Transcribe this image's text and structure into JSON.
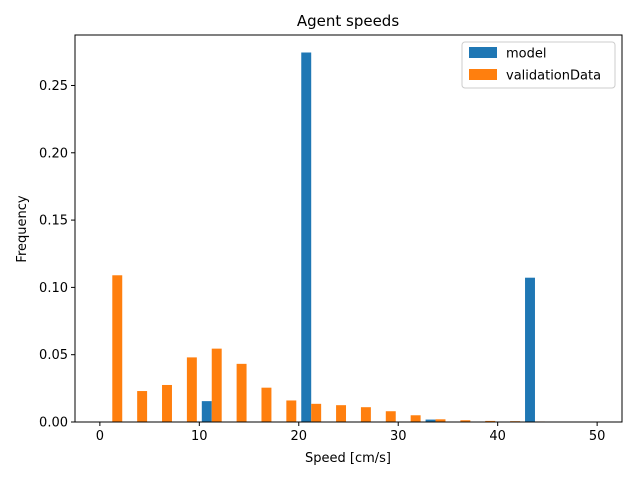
{
  "chart_data": {
    "type": "bar",
    "title": "Agent speeds",
    "xlabel": "Speed [cm/s]",
    "ylabel": "Frequency",
    "xlim": [
      -2.5,
      52.5
    ],
    "ylim": [
      0,
      0.2875
    ],
    "xticks": [
      0,
      10,
      20,
      30,
      40,
      50
    ],
    "xtick_labels": [
      "0",
      "10",
      "20",
      "30",
      "40",
      "50"
    ],
    "yticks": [
      0,
      0.05,
      0.1,
      0.15,
      0.2,
      0.25
    ],
    "ytick_labels": [
      "0.00",
      "0.05",
      "0.10",
      "0.15",
      "0.20",
      "0.25"
    ],
    "grid": false,
    "legend_position": "top-right",
    "bin_width": 2.5,
    "series": [
      {
        "name": "model",
        "color": "#1f77b4",
        "offset": "left",
        "bin_starts": [
          0,
          2.5,
          5,
          7.5,
          10,
          12.5,
          15,
          17.5,
          20,
          22.5,
          25,
          27.5,
          30,
          32.5,
          35,
          37.5,
          40,
          42.5,
          45,
          47.5
        ],
        "values": [
          0,
          0,
          0,
          0,
          0.0155,
          0,
          0,
          0,
          0.2745,
          0,
          0,
          0,
          0,
          0.0018,
          0,
          0,
          0,
          0.1072,
          0,
          0
        ]
      },
      {
        "name": "validationData",
        "color": "#ff7f0e",
        "offset": "right",
        "bin_starts": [
          0,
          2.5,
          5,
          7.5,
          10,
          12.5,
          15,
          17.5,
          20,
          22.5,
          25,
          27.5,
          30,
          32.5,
          35,
          37.5,
          40,
          42.5,
          45,
          47.5
        ],
        "values": [
          0.109,
          0.023,
          0.0275,
          0.048,
          0.0545,
          0.0432,
          0.0255,
          0.016,
          0.0135,
          0.0125,
          0.011,
          0.008,
          0.005,
          0.002,
          0.0013,
          0.0008,
          0.0006,
          0.0004,
          0.0003,
          0.0003
        ]
      }
    ]
  }
}
